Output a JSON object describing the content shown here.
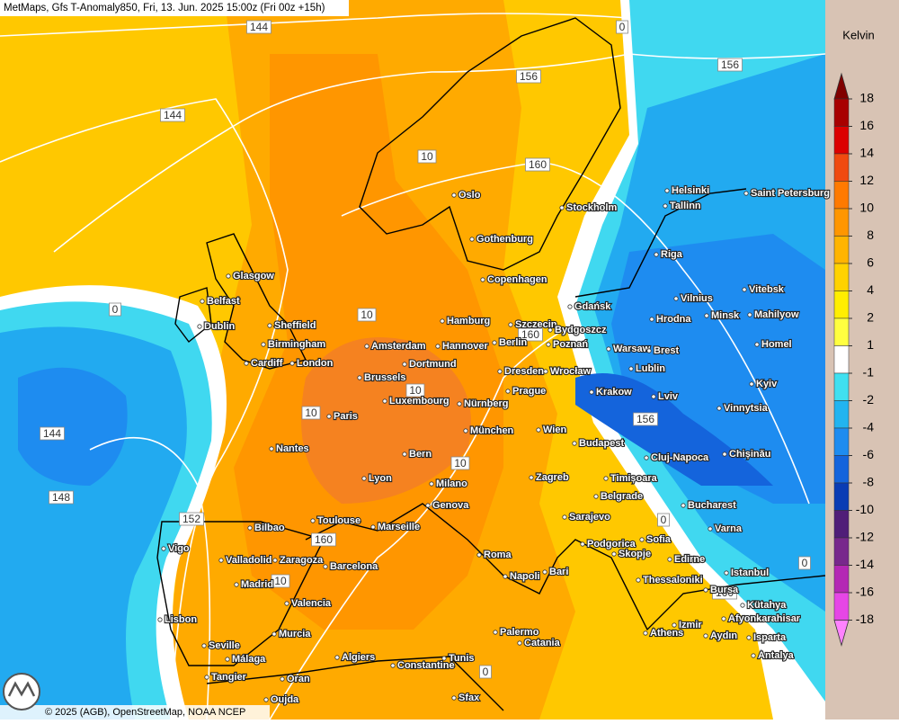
{
  "header": {
    "title": "MetMaps, Gfs T-Anomaly850, Fri, 13. Jun. 2025 15:00z (Fri 00z +15h)"
  },
  "footer": "© 2025 (AGB), OpenStreetMap, NOAA NCEP",
  "legend": {
    "title": "Kelvin",
    "ticks": [
      18,
      16,
      14,
      12,
      10,
      8,
      6,
      4,
      2,
      1,
      -1,
      -2,
      -4,
      -6,
      -8,
      -10,
      -12,
      -14,
      -16,
      -18
    ],
    "colors": [
      "#800000",
      "#a80000",
      "#dc0000",
      "#f04a10",
      "#ff7a00",
      "#ff9600",
      "#ffb400",
      "#ffd200",
      "#ffee00",
      "#ffff40",
      "#ffffff",
      "#40e0f0",
      "#22b4f0",
      "#1e8cf0",
      "#1464dc",
      "#0a3cb4",
      "#501e78",
      "#78288c",
      "#b428b4",
      "#e646e6",
      "#ff82ff"
    ]
  },
  "cities": [
    "Oslo",
    "Stockholm",
    "Helsinki",
    "Saint Petersburg",
    "Tallinn",
    "Gothenburg",
    "Riga",
    "Copenhagen",
    "Glasgow",
    "Belfast",
    "Gdańsk",
    "Vilnius",
    "Vitebsk",
    "Dublin",
    "Sheffield",
    "Hamburg",
    "Szczecin",
    "Bydgoszcz",
    "Hrodna",
    "Minsk",
    "Mahilyow",
    "Birmingham",
    "Amsterdam",
    "Hannover",
    "Berlin",
    "Poznań",
    "Warsaw",
    "Brest",
    "Homel",
    "Cardiff",
    "London",
    "Dortmund",
    "Lublin",
    "Brussels",
    "Dresden",
    "Wrocław",
    "Luxembourg",
    "Prague",
    "Krakow",
    "Lviv",
    "Kyiv",
    "Nürnberg",
    "Paris",
    "Vinnytsia",
    "München",
    "Wien",
    "Budapest",
    "Nantes",
    "Bern",
    "Cluj-Napoca",
    "Chișinău",
    "Lyon",
    "Timișoara",
    "Zagreb",
    "Milano",
    "Belgrade",
    "Bucharest",
    "Genova",
    "Sarajevo",
    "Varna",
    "Toulouse",
    "Marseille",
    "Bilbao",
    "Podgorica",
    "Sofia",
    "Skopje",
    "Vigo",
    "Roma",
    "Edirne",
    "Valladolid",
    "Zaragoza",
    "Barcelona",
    "Istanbul",
    "Bari",
    "Napoli",
    "Thessaloniki",
    "Madrid",
    "Bursa",
    "Valencia",
    "Kütahya",
    "Afyonkarahisar",
    "Lisbon",
    "Palermo",
    "Murcia",
    "Izmir",
    "Aydın",
    "Isparta",
    "Athens",
    "Catania",
    "Seville",
    "Málaga",
    "Algiers",
    "Tunis",
    "Antalya",
    "Constantine",
    "Tangier",
    "Oran",
    "Sfax",
    "Oujda"
  ],
  "contours": [
    144,
    156,
    156,
    144,
    10,
    160,
    0,
    0,
    10,
    160,
    10,
    10,
    144,
    156,
    10,
    148,
    152,
    160,
    10,
    0,
    0,
    160,
    0
  ]
}
